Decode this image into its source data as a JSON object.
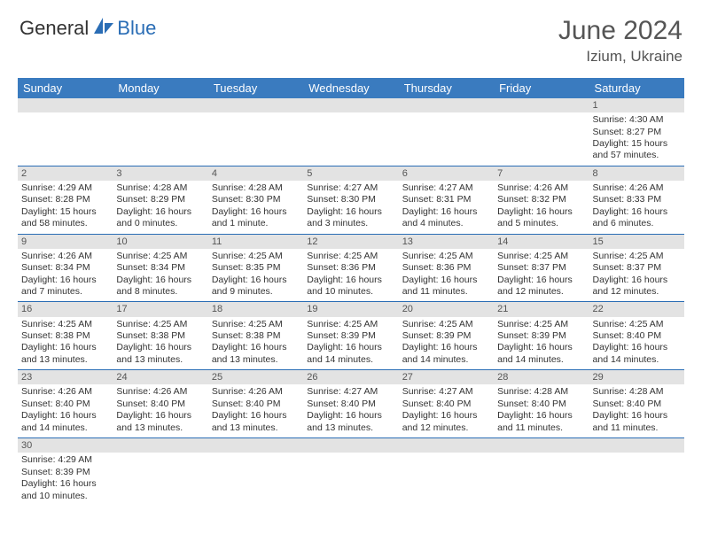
{
  "brand": {
    "part1": "General",
    "part2": "Blue"
  },
  "title": "June 2024",
  "location": "Izium, Ukraine",
  "colors": {
    "header_bg": "#3a7bbf",
    "header_text": "#ffffff",
    "daynum_bg": "#e3e3e3",
    "border": "#2a6db5",
    "text": "#333333",
    "title_text": "#555555"
  },
  "day_headers": [
    "Sunday",
    "Monday",
    "Tuesday",
    "Wednesday",
    "Thursday",
    "Friday",
    "Saturday"
  ],
  "weeks": [
    [
      null,
      null,
      null,
      null,
      null,
      null,
      {
        "n": "1",
        "sr": "Sunrise: 4:30 AM",
        "ss": "Sunset: 8:27 PM",
        "dl1": "Daylight: 15 hours",
        "dl2": "and 57 minutes."
      }
    ],
    [
      {
        "n": "2",
        "sr": "Sunrise: 4:29 AM",
        "ss": "Sunset: 8:28 PM",
        "dl1": "Daylight: 15 hours",
        "dl2": "and 58 minutes."
      },
      {
        "n": "3",
        "sr": "Sunrise: 4:28 AM",
        "ss": "Sunset: 8:29 PM",
        "dl1": "Daylight: 16 hours",
        "dl2": "and 0 minutes."
      },
      {
        "n": "4",
        "sr": "Sunrise: 4:28 AM",
        "ss": "Sunset: 8:30 PM",
        "dl1": "Daylight: 16 hours",
        "dl2": "and 1 minute."
      },
      {
        "n": "5",
        "sr": "Sunrise: 4:27 AM",
        "ss": "Sunset: 8:30 PM",
        "dl1": "Daylight: 16 hours",
        "dl2": "and 3 minutes."
      },
      {
        "n": "6",
        "sr": "Sunrise: 4:27 AM",
        "ss": "Sunset: 8:31 PM",
        "dl1": "Daylight: 16 hours",
        "dl2": "and 4 minutes."
      },
      {
        "n": "7",
        "sr": "Sunrise: 4:26 AM",
        "ss": "Sunset: 8:32 PM",
        "dl1": "Daylight: 16 hours",
        "dl2": "and 5 minutes."
      },
      {
        "n": "8",
        "sr": "Sunrise: 4:26 AM",
        "ss": "Sunset: 8:33 PM",
        "dl1": "Daylight: 16 hours",
        "dl2": "and 6 minutes."
      }
    ],
    [
      {
        "n": "9",
        "sr": "Sunrise: 4:26 AM",
        "ss": "Sunset: 8:34 PM",
        "dl1": "Daylight: 16 hours",
        "dl2": "and 7 minutes."
      },
      {
        "n": "10",
        "sr": "Sunrise: 4:25 AM",
        "ss": "Sunset: 8:34 PM",
        "dl1": "Daylight: 16 hours",
        "dl2": "and 8 minutes."
      },
      {
        "n": "11",
        "sr": "Sunrise: 4:25 AM",
        "ss": "Sunset: 8:35 PM",
        "dl1": "Daylight: 16 hours",
        "dl2": "and 9 minutes."
      },
      {
        "n": "12",
        "sr": "Sunrise: 4:25 AM",
        "ss": "Sunset: 8:36 PM",
        "dl1": "Daylight: 16 hours",
        "dl2": "and 10 minutes."
      },
      {
        "n": "13",
        "sr": "Sunrise: 4:25 AM",
        "ss": "Sunset: 8:36 PM",
        "dl1": "Daylight: 16 hours",
        "dl2": "and 11 minutes."
      },
      {
        "n": "14",
        "sr": "Sunrise: 4:25 AM",
        "ss": "Sunset: 8:37 PM",
        "dl1": "Daylight: 16 hours",
        "dl2": "and 12 minutes."
      },
      {
        "n": "15",
        "sr": "Sunrise: 4:25 AM",
        "ss": "Sunset: 8:37 PM",
        "dl1": "Daylight: 16 hours",
        "dl2": "and 12 minutes."
      }
    ],
    [
      {
        "n": "16",
        "sr": "Sunrise: 4:25 AM",
        "ss": "Sunset: 8:38 PM",
        "dl1": "Daylight: 16 hours",
        "dl2": "and 13 minutes."
      },
      {
        "n": "17",
        "sr": "Sunrise: 4:25 AM",
        "ss": "Sunset: 8:38 PM",
        "dl1": "Daylight: 16 hours",
        "dl2": "and 13 minutes."
      },
      {
        "n": "18",
        "sr": "Sunrise: 4:25 AM",
        "ss": "Sunset: 8:38 PM",
        "dl1": "Daylight: 16 hours",
        "dl2": "and 13 minutes."
      },
      {
        "n": "19",
        "sr": "Sunrise: 4:25 AM",
        "ss": "Sunset: 8:39 PM",
        "dl1": "Daylight: 16 hours",
        "dl2": "and 14 minutes."
      },
      {
        "n": "20",
        "sr": "Sunrise: 4:25 AM",
        "ss": "Sunset: 8:39 PM",
        "dl1": "Daylight: 16 hours",
        "dl2": "and 14 minutes."
      },
      {
        "n": "21",
        "sr": "Sunrise: 4:25 AM",
        "ss": "Sunset: 8:39 PM",
        "dl1": "Daylight: 16 hours",
        "dl2": "and 14 minutes."
      },
      {
        "n": "22",
        "sr": "Sunrise: 4:25 AM",
        "ss": "Sunset: 8:40 PM",
        "dl1": "Daylight: 16 hours",
        "dl2": "and 14 minutes."
      }
    ],
    [
      {
        "n": "23",
        "sr": "Sunrise: 4:26 AM",
        "ss": "Sunset: 8:40 PM",
        "dl1": "Daylight: 16 hours",
        "dl2": "and 14 minutes."
      },
      {
        "n": "24",
        "sr": "Sunrise: 4:26 AM",
        "ss": "Sunset: 8:40 PM",
        "dl1": "Daylight: 16 hours",
        "dl2": "and 13 minutes."
      },
      {
        "n": "25",
        "sr": "Sunrise: 4:26 AM",
        "ss": "Sunset: 8:40 PM",
        "dl1": "Daylight: 16 hours",
        "dl2": "and 13 minutes."
      },
      {
        "n": "26",
        "sr": "Sunrise: 4:27 AM",
        "ss": "Sunset: 8:40 PM",
        "dl1": "Daylight: 16 hours",
        "dl2": "and 13 minutes."
      },
      {
        "n": "27",
        "sr": "Sunrise: 4:27 AM",
        "ss": "Sunset: 8:40 PM",
        "dl1": "Daylight: 16 hours",
        "dl2": "and 12 minutes."
      },
      {
        "n": "28",
        "sr": "Sunrise: 4:28 AM",
        "ss": "Sunset: 8:40 PM",
        "dl1": "Daylight: 16 hours",
        "dl2": "and 11 minutes."
      },
      {
        "n": "29",
        "sr": "Sunrise: 4:28 AM",
        "ss": "Sunset: 8:40 PM",
        "dl1": "Daylight: 16 hours",
        "dl2": "and 11 minutes."
      }
    ],
    [
      {
        "n": "30",
        "sr": "Sunrise: 4:29 AM",
        "ss": "Sunset: 8:39 PM",
        "dl1": "Daylight: 16 hours",
        "dl2": "and 10 minutes."
      },
      null,
      null,
      null,
      null,
      null,
      null
    ]
  ]
}
